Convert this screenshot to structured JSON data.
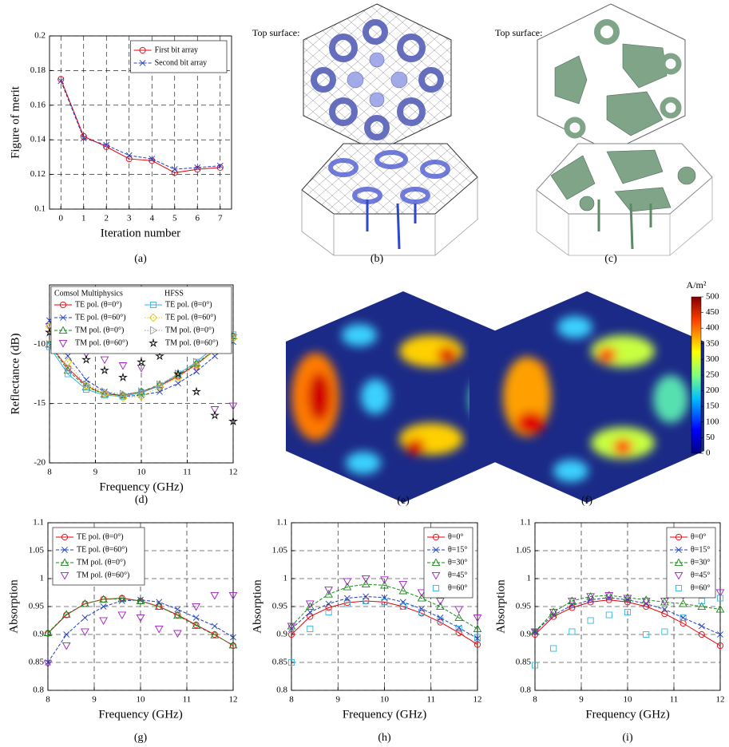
{
  "chart_data": [
    {
      "type": "line",
      "panel_label": "(a)",
      "xlabel": "Iteration number",
      "ylabel": "Figure of merit",
      "x": [
        0,
        1,
        2,
        3,
        4,
        5,
        6,
        7
      ],
      "xlim": [
        -0.5,
        7.5
      ],
      "xticks": [
        0,
        1,
        2,
        3,
        4,
        5,
        6,
        7
      ],
      "ylim": [
        0.1,
        0.2
      ],
      "yticks": [
        0.1,
        0.12,
        0.14,
        0.16,
        0.18,
        0.2
      ],
      "grid": true,
      "legend": "upper right",
      "series": [
        {
          "name": "First bit array",
          "color": "#e8000b",
          "marker": "o",
          "linestyle": "solid",
          "values": [
            0.175,
            0.142,
            0.136,
            0.129,
            0.128,
            0.121,
            0.123,
            0.124
          ]
        },
        {
          "name": "Second bit array",
          "color": "#1f3fbf",
          "marker": "x",
          "linestyle": "dashed",
          "values": [
            0.174,
            0.141,
            0.137,
            0.131,
            0.129,
            0.123,
            0.124,
            0.125
          ]
        }
      ]
    },
    {
      "type": "line",
      "panel_label": "(d)",
      "xlabel": "Frequency (GHz)",
      "ylabel": "Reflectance (dB)",
      "legend_titles": [
        "Comsol Multiphysics",
        "HFSS"
      ],
      "x": [
        8,
        8.4,
        8.8,
        9.2,
        9.6,
        10,
        10.4,
        10.8,
        11.2,
        11.6,
        12
      ],
      "xlim": [
        8,
        12
      ],
      "xticks": [
        8,
        9,
        10,
        11,
        12
      ],
      "ylim": [
        -20,
        -5
      ],
      "yticks": [
        -20,
        -15,
        -10
      ],
      "grid": true,
      "legend": "upper left",
      "series": [
        {
          "name": "TE pol. (θ=0°)",
          "color": "#e8000b",
          "marker": "o",
          "linestyle": "solid",
          "values": [
            -10,
            -12,
            -13.5,
            -14.2,
            -14.3,
            -14,
            -13.5,
            -12.7,
            -11.7,
            -10.5,
            -9.3
          ]
        },
        {
          "name": "TE pol. (θ=60°)",
          "color": "#1f3fbf",
          "marker": "x",
          "linestyle": "dashed",
          "values": [
            -8,
            -11,
            -13,
            -14,
            -14.4,
            -14.3,
            -14,
            -13.3,
            -12.3,
            -11,
            -9.8
          ]
        },
        {
          "name": "TM pol. (θ=0°)",
          "color": "#1a8a1a",
          "marker": "^",
          "linestyle": "dashed",
          "values": [
            -10,
            -12.2,
            -13.6,
            -14.2,
            -14.3,
            -14,
            -13.4,
            -12.6,
            -11.6,
            -10.5,
            -9.3
          ]
        },
        {
          "name": "TM pol. (θ=60°)",
          "color": "#a020c0",
          "marker": "v",
          "linestyle": "none",
          "values": [
            -8.5,
            -10,
            -10.8,
            -11.3,
            -11.8,
            -12,
            -10.3,
            -10,
            -12,
            -15.5,
            -15.2
          ]
        },
        {
          "name": "TE pol. (θ=0°)",
          "color": "#33b5e5",
          "marker": "s",
          "linestyle": "solid",
          "values": [
            -10.2,
            -12.5,
            -13.8,
            -14.3,
            -14.4,
            -14.1,
            -13.5,
            -12.5,
            -11.5,
            -10.2,
            -9.2
          ]
        },
        {
          "name": "TE pol. (θ=60°)",
          "color": "#e6c700",
          "marker": "d",
          "linestyle": "dotted",
          "values": [
            -8.5,
            -11.5,
            -13.5,
            -14.2,
            -14.5,
            -14.4,
            -13.6,
            -12.8,
            -11.8,
            -10.5,
            -9.5
          ]
        },
        {
          "name": "TM pol. (θ=0°)",
          "color": "#999999",
          "marker": ">",
          "linestyle": "dotted",
          "values": [
            -10,
            -12,
            -13.4,
            -14,
            -14.2,
            -14,
            -13.4,
            -12.5,
            -11.5,
            -10.2,
            -9.2
          ]
        },
        {
          "name": "TM pol. (θ=60°)",
          "color": "#000000",
          "marker": "*",
          "linestyle": "none",
          "values": [
            -9,
            -10.2,
            -11.3,
            -12.2,
            -12.8,
            -11.5,
            -11,
            -12.5,
            -14,
            -16,
            -16.5
          ]
        }
      ]
    },
    {
      "type": "line",
      "panel_label": "(g)",
      "xlabel": "Frequency (GHz)",
      "ylabel": "Absorption",
      "x": [
        8,
        8.4,
        8.8,
        9.2,
        9.6,
        10,
        10.4,
        10.8,
        11.2,
        11.6,
        12
      ],
      "xlim": [
        8,
        12
      ],
      "xticks": [
        8,
        9,
        10,
        11,
        12
      ],
      "ylim": [
        0.8,
        1.1
      ],
      "yticks": [
        0.8,
        0.85,
        0.9,
        0.95,
        1,
        1.05,
        1.1
      ],
      "grid": true,
      "legend": "upper left",
      "series": [
        {
          "name": "TE pol. (θ=0°)",
          "color": "#e8000b",
          "marker": "o",
          "linestyle": "solid",
          "values": [
            0.902,
            0.935,
            0.955,
            0.963,
            0.965,
            0.96,
            0.95,
            0.935,
            0.917,
            0.9,
            0.88
          ]
        },
        {
          "name": "TE pol. (θ=60°)",
          "color": "#1f3fbf",
          "marker": "x",
          "linestyle": "dashed",
          "values": [
            0.85,
            0.9,
            0.93,
            0.95,
            0.96,
            0.962,
            0.958,
            0.945,
            0.93,
            0.915,
            0.895
          ]
        },
        {
          "name": "TM pol. (θ=0°)",
          "color": "#1a8a1a",
          "marker": "^",
          "linestyle": "dashed",
          "values": [
            0.903,
            0.936,
            0.955,
            0.963,
            0.964,
            0.96,
            0.95,
            0.934,
            0.916,
            0.899,
            0.881
          ]
        },
        {
          "name": "TM pol. (θ=60°)",
          "color": "#a020c0",
          "marker": "v",
          "linestyle": "none",
          "values": [
            0.848,
            0.88,
            0.905,
            0.925,
            0.935,
            0.93,
            0.91,
            0.902,
            0.95,
            0.97,
            0.97
          ]
        }
      ]
    },
    {
      "type": "line",
      "panel_label": "(h)",
      "xlabel": "Frequency (GHz)",
      "ylabel": "Absorption",
      "x": [
        8,
        8.4,
        8.8,
        9.2,
        9.6,
        10,
        10.4,
        10.8,
        11.2,
        11.6,
        12
      ],
      "xlim": [
        8,
        12
      ],
      "xticks": [
        8,
        9,
        10,
        11,
        12
      ],
      "ylim": [
        0.8,
        1.1
      ],
      "yticks": [
        0.8,
        0.85,
        0.9,
        0.95,
        1,
        1.05,
        1.1
      ],
      "grid": true,
      "legend": "upper right",
      "series": [
        {
          "name": "θ=0°",
          "color": "#e8000b",
          "marker": "o",
          "linestyle": "solid",
          "values": [
            0.9,
            0.932,
            0.948,
            0.957,
            0.96,
            0.958,
            0.95,
            0.938,
            0.922,
            0.903,
            0.882
          ]
        },
        {
          "name": "θ=15°",
          "color": "#1f3fbf",
          "marker": "x",
          "linestyle": "dashed",
          "values": [
            0.91,
            0.94,
            0.955,
            0.965,
            0.968,
            0.966,
            0.958,
            0.946,
            0.93,
            0.912,
            0.893
          ]
        },
        {
          "name": "θ=30°",
          "color": "#1a8a1a",
          "marker": "^",
          "linestyle": "dashed",
          "values": [
            0.915,
            0.95,
            0.972,
            0.985,
            0.99,
            0.988,
            0.978,
            0.965,
            0.95,
            0.93,
            0.91
          ]
        },
        {
          "name": "θ=45°",
          "color": "#a020c0",
          "marker": "v",
          "linestyle": "none",
          "values": [
            0.915,
            0.955,
            0.98,
            0.995,
            1,
            0.998,
            0.99,
            0.975,
            0.96,
            0.945,
            0.93
          ]
        },
        {
          "name": "θ=60°",
          "color": "#33b5e5",
          "marker": "s",
          "linestyle": "none",
          "values": [
            0.85,
            0.91,
            0.94,
            0.955,
            0.96,
            0.958,
            0.95,
            0.94,
            0.925,
            0.91,
            0.895
          ]
        }
      ]
    },
    {
      "type": "line",
      "panel_label": "(i)",
      "xlabel": "Frequency (GHz)",
      "ylabel": "Absorption",
      "x": [
        8,
        8.4,
        8.8,
        9.2,
        9.6,
        10,
        10.4,
        10.8,
        11.2,
        11.6,
        12
      ],
      "xlim": [
        8,
        12
      ],
      "xticks": [
        8,
        9,
        10,
        11,
        12
      ],
      "ylim": [
        0.8,
        1.1
      ],
      "yticks": [
        0.8,
        0.85,
        0.9,
        0.95,
        1,
        1.05,
        1.1
      ],
      "grid": true,
      "legend": "upper right",
      "series": [
        {
          "name": "θ=0°",
          "color": "#e8000b",
          "marker": "o",
          "linestyle": "solid",
          "values": [
            0.9,
            0.932,
            0.948,
            0.958,
            0.962,
            0.958,
            0.95,
            0.937,
            0.92,
            0.9,
            0.88
          ]
        },
        {
          "name": "θ=15°",
          "color": "#1f3fbf",
          "marker": "x",
          "linestyle": "dashed",
          "values": [
            0.905,
            0.935,
            0.952,
            0.962,
            0.966,
            0.962,
            0.955,
            0.945,
            0.93,
            0.915,
            0.9
          ]
        },
        {
          "name": "θ=30°",
          "color": "#1a8a1a",
          "marker": "^",
          "linestyle": "dashed",
          "values": [
            0.905,
            0.94,
            0.96,
            0.968,
            0.97,
            0.966,
            0.962,
            0.958,
            0.955,
            0.95,
            0.945
          ]
        },
        {
          "name": "θ=45°",
          "color": "#a020c0",
          "marker": "v",
          "linestyle": "none",
          "values": [
            0.905,
            0.94,
            0.96,
            0.968,
            0.97,
            0.965,
            0.96,
            0.96,
            0.97,
            0.975,
            0.975
          ]
        },
        {
          "name": "θ=60°",
          "color": "#33b5e5",
          "marker": "s",
          "linestyle": "none",
          "values": [
            0.845,
            0.875,
            0.905,
            0.925,
            0.935,
            0.94,
            0.9,
            0.905,
            0.93,
            0.96,
            0.965
          ]
        }
      ]
    }
  ],
  "images": [
    {
      "caption": "Top surface:",
      "panel_label": "(b)"
    },
    {
      "caption": "Top surface:",
      "panel_label": "(c)"
    },
    {
      "panel_label": "(e)"
    },
    {
      "panel_label": "(f)"
    }
  ],
  "colorbar": {
    "label": "A/m²",
    "range": [
      0,
      500
    ],
    "ticks": [
      0,
      50,
      100,
      150,
      200,
      250,
      300,
      350,
      400,
      450,
      500
    ]
  }
}
